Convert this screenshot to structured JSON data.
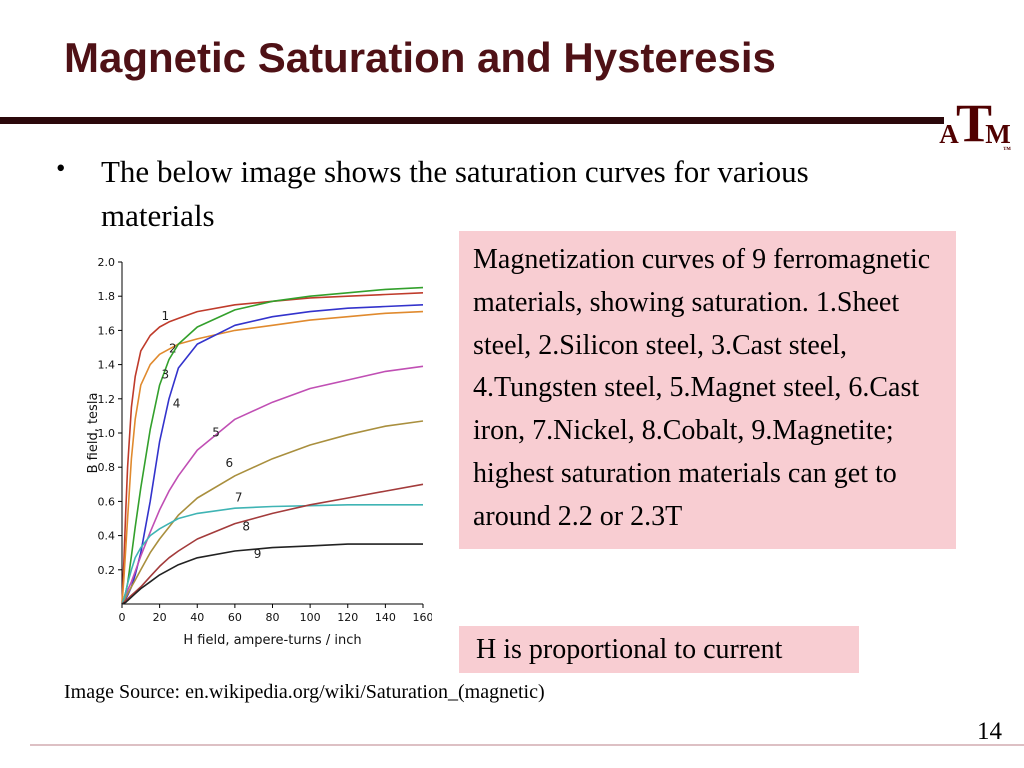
{
  "slide": {
    "title": "Magnetic Saturation and Hysteresis",
    "bullet_char": "•",
    "bullet_text": "The below image shows the saturation curves for various materials",
    "caption": "Magnetization curves of 9 ferromagnetic materials, showing saturation. 1.Sheet steel, 2.Silicon steel, 3.Cast steel, 4.Tungsten steel, 5.Magnet steel, 6.Cast iron, 7.Nickel, 8.Cobalt, 9.Magnetite; highest saturation materials can get to around 2.2 or 2.3T",
    "h_note": "H is proportional to current",
    "image_source": "Image Source: en.wikipedia.org/wiki/Saturation_(magnetic)",
    "page_number": "14",
    "logo": {
      "left": "A",
      "center": "T",
      "right": "M",
      "tm": "™"
    },
    "colors": {
      "maroon": "#4f1116",
      "title_rule": "#2b080b",
      "pink_box": "#f8cdd2"
    }
  },
  "chart_data": {
    "type": "line",
    "title": "",
    "xlabel": "H field, ampere-turns / inch",
    "ylabel": "B field, tesla",
    "xlim": [
      0,
      160
    ],
    "ylim": [
      0,
      2.0
    ],
    "grid": false,
    "legend_position": "numbered labels on plot",
    "x_ticks": [
      0,
      20,
      40,
      60,
      80,
      100,
      120,
      140,
      160
    ],
    "y_tick_labels": [
      "0.2",
      "0.4",
      "0.6",
      "0.8",
      "1.0",
      "1.2",
      "1.4",
      "1.6",
      "1.8",
      "2.0"
    ],
    "x": [
      0,
      1,
      2,
      3,
      5,
      7,
      10,
      15,
      20,
      25,
      30,
      40,
      60,
      80,
      100,
      120,
      140,
      160
    ],
    "series": [
      {
        "label": "1",
        "name": "Sheet steel",
        "color": "#bf3b2b",
        "label_x": 21,
        "label_y": 1.66,
        "values": [
          0,
          0.25,
          0.55,
          0.8,
          1.15,
          1.33,
          1.48,
          1.57,
          1.62,
          1.65,
          1.67,
          1.71,
          1.75,
          1.77,
          1.79,
          1.8,
          1.81,
          1.82
        ]
      },
      {
        "label": "2",
        "name": "Silicon steel",
        "color": "#e08a2e",
        "label_x": 25,
        "label_y": 1.47,
        "values": [
          0,
          0.15,
          0.33,
          0.5,
          0.85,
          1.08,
          1.28,
          1.4,
          1.46,
          1.49,
          1.52,
          1.55,
          1.6,
          1.63,
          1.66,
          1.68,
          1.7,
          1.71
        ]
      },
      {
        "label": "3",
        "name": "Cast steel",
        "color": "#33a02c",
        "label_x": 21,
        "label_y": 1.32,
        "values": [
          0,
          0.03,
          0.07,
          0.12,
          0.28,
          0.45,
          0.68,
          1.02,
          1.28,
          1.43,
          1.52,
          1.62,
          1.72,
          1.77,
          1.8,
          1.82,
          1.84,
          1.85
        ]
      },
      {
        "label": "4",
        "name": "Tungsten steel",
        "color": "#3333cc",
        "label_x": 27,
        "label_y": 1.15,
        "values": [
          0,
          0.02,
          0.03,
          0.05,
          0.1,
          0.17,
          0.3,
          0.6,
          0.95,
          1.2,
          1.38,
          1.52,
          1.63,
          1.68,
          1.71,
          1.73,
          1.74,
          1.75
        ]
      },
      {
        "label": "5",
        "name": "Magnet steel",
        "color": "#c04fb4",
        "label_x": 48,
        "label_y": 0.98,
        "values": [
          0,
          0.03,
          0.05,
          0.08,
          0.13,
          0.19,
          0.28,
          0.42,
          0.55,
          0.66,
          0.75,
          0.9,
          1.08,
          1.18,
          1.26,
          1.31,
          1.36,
          1.39
        ]
      },
      {
        "label": "6",
        "name": "Cast iron",
        "color": "#a98f3e",
        "label_x": 55,
        "label_y": 0.8,
        "values": [
          0,
          0.02,
          0.04,
          0.06,
          0.1,
          0.14,
          0.2,
          0.3,
          0.38,
          0.45,
          0.52,
          0.62,
          0.75,
          0.85,
          0.93,
          0.99,
          1.04,
          1.07
        ]
      },
      {
        "label": "7",
        "name": "Nickel",
        "color": "#3fb4b4",
        "label_x": 60,
        "label_y": 0.6,
        "values": [
          0,
          0.03,
          0.07,
          0.12,
          0.2,
          0.27,
          0.33,
          0.4,
          0.44,
          0.47,
          0.5,
          0.53,
          0.56,
          0.57,
          0.575,
          0.58,
          0.58,
          0.58
        ]
      },
      {
        "label": "8",
        "name": "Cobalt",
        "color": "#a33b3b",
        "label_x": 64,
        "label_y": 0.43,
        "values": [
          0,
          0.01,
          0.02,
          0.03,
          0.05,
          0.07,
          0.1,
          0.16,
          0.22,
          0.27,
          0.31,
          0.38,
          0.47,
          0.53,
          0.58,
          0.62,
          0.66,
          0.7
        ]
      },
      {
        "label": "9",
        "name": "Magnetite",
        "color": "#222222",
        "label_x": 70,
        "label_y": 0.27,
        "values": [
          0,
          0.005,
          0.01,
          0.02,
          0.04,
          0.06,
          0.09,
          0.13,
          0.17,
          0.2,
          0.23,
          0.27,
          0.31,
          0.33,
          0.34,
          0.35,
          0.35,
          0.35
        ]
      }
    ]
  }
}
